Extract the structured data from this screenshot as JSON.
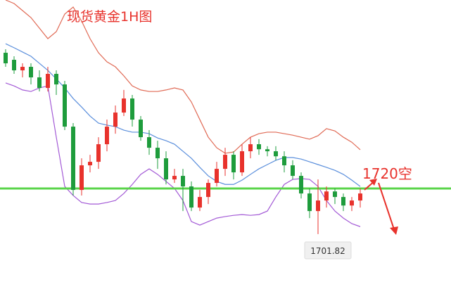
{
  "chart_data": {
    "type": "candlestick",
    "title": "现货黄金1H图",
    "annotation": "1720空",
    "categories": [
      null,
      null,
      null,
      null,
      null,
      null,
      null,
      null,
      null,
      null,
      null,
      null,
      null,
      null,
      null,
      null,
      null,
      null,
      null,
      null,
      null,
      null,
      null,
      null,
      null,
      null,
      null,
      null,
      null,
      null,
      null,
      null,
      null,
      null,
      null,
      null,
      null,
      null,
      null,
      null,
      null,
      null,
      null
    ],
    "open": [
      1774.0,
      1771.2,
      1767.0,
      1768.4,
      1764.2,
      1760.0,
      1765.6,
      1761.4,
      1744.6,
      1719.4,
      1729.2,
      1730.6,
      1737.6,
      1744.6,
      1750.2,
      1755.8,
      1747.4,
      1740.4,
      1736.2,
      1732.0,
      1723.6,
      1725.0,
      1720.8,
      1712.4,
      1716.6,
      1722.2,
      1727.8,
      1733.4,
      1726.4,
      1734.8,
      1737.6,
      1735.6,
      1734.8,
      1732.8,
      1729.2,
      1725.0,
      1718.0,
      1711.0,
      1715.2,
      1718.8,
      1716.6,
      1713.2,
      1715.2
    ],
    "high": [
      1775.4,
      1772.6,
      1769.8,
      1769.8,
      1767.0,
      1768.4,
      1767.0,
      1762.8,
      1746.0,
      1732.0,
      1733.4,
      1740.4,
      1747.4,
      1753.0,
      1759.2,
      1757.2,
      1748.8,
      1743.2,
      1739.0,
      1734.8,
      1727.8,
      1727.8,
      1722.8,
      1719.4,
      1723.6,
      1730.6,
      1736.2,
      1734.8,
      1737.6,
      1740.4,
      1739.6,
      1736.8,
      1736.8,
      1734.8,
      1731.2,
      1726.4,
      1720.0,
      1723.6,
      1720.8,
      1720.0,
      1718.0,
      1716.6,
      1720.0
    ],
    "low": [
      1768.4,
      1765.6,
      1764.2,
      1761.4,
      1758.6,
      1758.6,
      1757.2,
      1743.2,
      1717.2,
      1717.2,
      1726.4,
      1727.8,
      1734.8,
      1741.8,
      1748.8,
      1744.6,
      1739.0,
      1733.4,
      1727.8,
      1721.6,
      1722.2,
      1711.0,
      1711.0,
      1711.0,
      1713.8,
      1720.8,
      1725.0,
      1723.6,
      1725.0,
      1732.0,
      1733.4,
      1732.8,
      1731.2,
      1726.4,
      1723.6,
      1716.0,
      1708.2,
      1701.82,
      1712.4,
      1713.8,
      1711.0,
      1711.0,
      1712.4
    ],
    "close": [
      1769.8,
      1767.0,
      1768.4,
      1764.2,
      1760.0,
      1765.6,
      1761.4,
      1744.6,
      1719.4,
      1729.2,
      1730.6,
      1737.6,
      1744.6,
      1750.2,
      1755.8,
      1747.4,
      1740.4,
      1736.2,
      1732.0,
      1723.6,
      1725.0,
      1720.8,
      1712.4,
      1716.6,
      1722.2,
      1727.8,
      1733.4,
      1726.4,
      1734.8,
      1737.6,
      1735.6,
      1734.8,
      1732.8,
      1729.2,
      1725.0,
      1718.0,
      1711.0,
      1715.2,
      1718.8,
      1716.6,
      1713.2,
      1715.2,
      1718.0
    ],
    "up_color": "#e8322c",
    "down_color": "#1e9c3c",
    "lines": [
      {
        "color": "#e06a55",
        "values": [
          1795.0,
          1793.6,
          1790.8,
          1788.0,
          1783.8,
          1779.6,
          1782.4,
          1789.4,
          1792.2,
          1786.6,
          1779.6,
          1774.0,
          1770.4,
          1768.4,
          1764.8,
          1760.8,
          1759.2,
          1758.6,
          1758.6,
          1759.2,
          1760.0,
          1759.2,
          1754.4,
          1747.4,
          1740.4,
          1736.2,
          1734.0,
          1734.5,
          1737.6,
          1740.4,
          1741.8,
          1742.4,
          1742.4,
          1741.8,
          1741.2,
          1740.4,
          1739.6,
          1741.0,
          1743.8,
          1742.9,
          1740.4,
          1738.4,
          1735.4
        ]
      },
      {
        "color": "#5b8fdc",
        "values": [
          1777.6,
          1776.0,
          1774.3,
          1772.6,
          1769.8,
          1767.0,
          1763.6,
          1760.0,
          1755.8,
          1752.4,
          1748.8,
          1746.0,
          1745.2,
          1744.6,
          1743.2,
          1742.4,
          1742.4,
          1741.8,
          1740.1,
          1739.0,
          1737.6,
          1734.8,
          1732.0,
          1728.4,
          1725.0,
          1722.8,
          1721.6,
          1721.6,
          1723.3,
          1725.6,
          1727.8,
          1729.5,
          1731.2,
          1732.3,
          1732.3,
          1731.7,
          1730.6,
          1729.5,
          1728.4,
          1727.2,
          1725.6,
          1723.3,
          1720.8
        ]
      },
      {
        "color": "#a35ad6",
        "values": [
          1762.0,
          1760.8,
          1759.2,
          1758.6,
          1760.0,
          1760.8,
          1740.4,
          1720.8,
          1717.2,
          1714.4,
          1713.8,
          1713.8,
          1714.4,
          1715.2,
          1718.0,
          1721.6,
          1725.6,
          1727.8,
          1725.6,
          1722.8,
          1720.0,
          1715.2,
          1706.8,
          1705.4,
          1706.8,
          1708.2,
          1708.8,
          1709.3,
          1709.6,
          1709.3,
          1709.6,
          1711.0,
          1716.6,
          1721.6,
          1723.6,
          1723.9,
          1723.6,
          1720.8,
          1715.2,
          1711.0,
          1708.2,
          1706.0,
          1704.8
        ]
      }
    ],
    "level": 1720,
    "level_color": "#5ad44a",
    "ylim": [
      1675.2,
      1795
    ]
  }
}
